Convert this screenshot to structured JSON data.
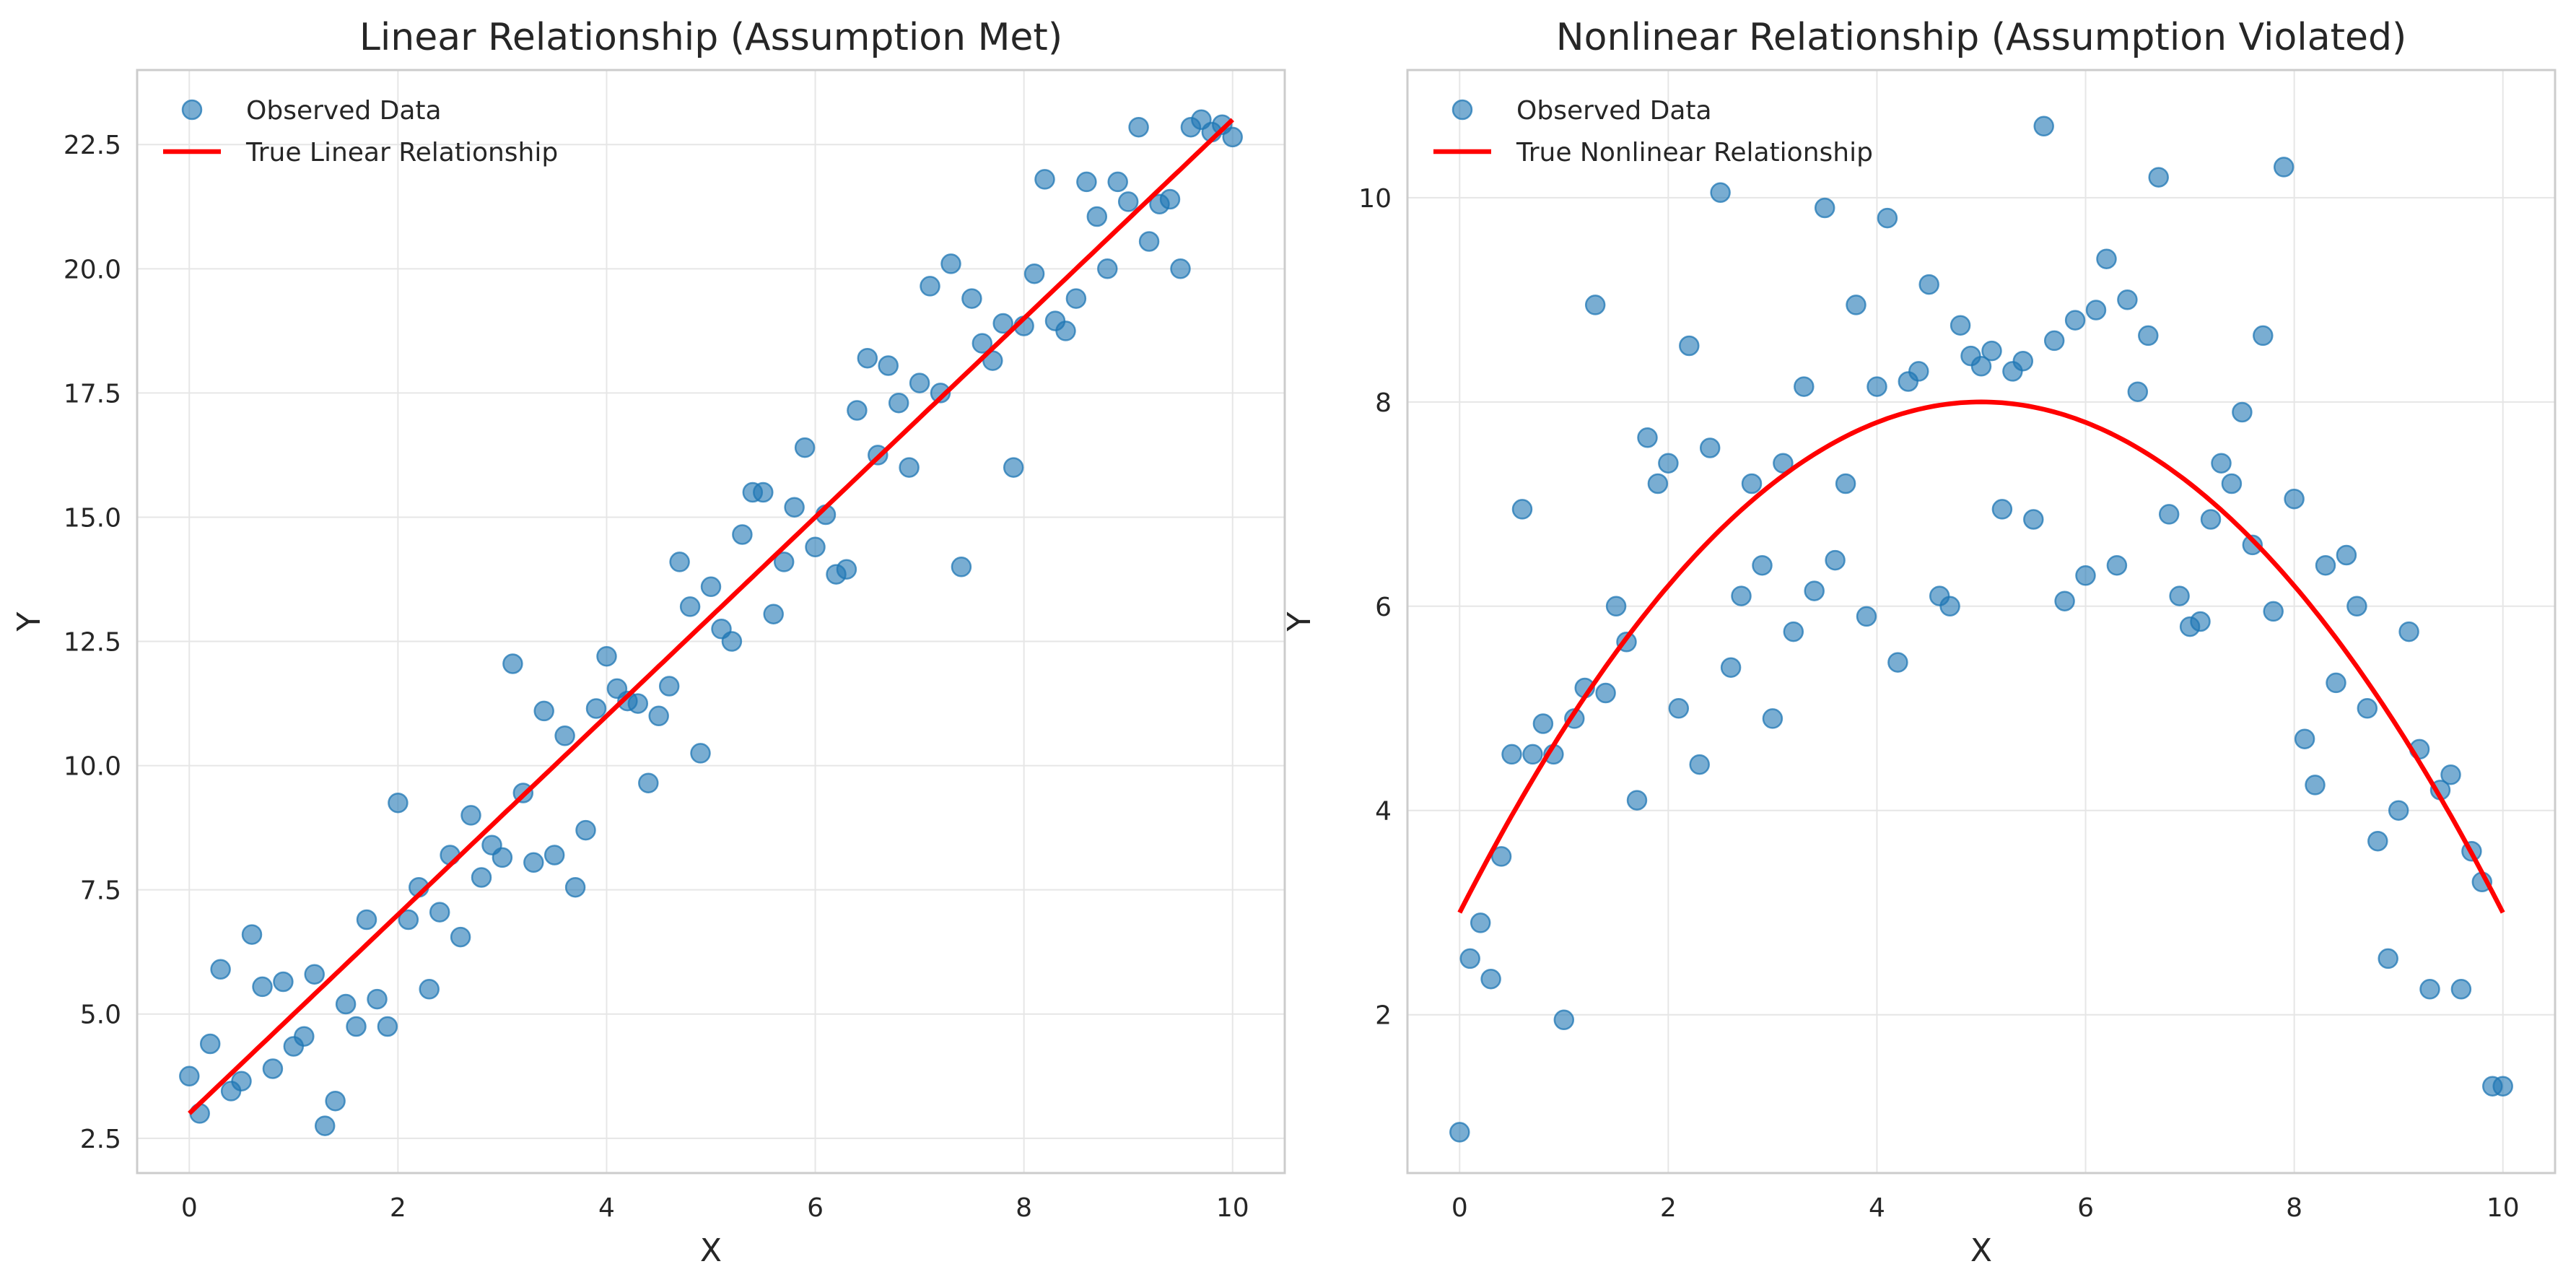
{
  "colors": {
    "points": "#1f77b4",
    "line": "#ff0000",
    "grid": "#e6e6e6",
    "frame": "#cccccc",
    "text": "#262626"
  },
  "chart_data": [
    {
      "type": "scatter",
      "title": "Linear Relationship (Assumption Met)",
      "xlabel": "X",
      "ylabel": "Y",
      "xlim": [
        -0.5,
        10.5
      ],
      "ylim": [
        1.8,
        24.0
      ],
      "xticks": [
        0,
        2,
        4,
        6,
        8,
        10
      ],
      "xtick_labels": [
        "0",
        "2",
        "4",
        "6",
        "8",
        "10"
      ],
      "yticks": [
        2.5,
        5.0,
        7.5,
        10.0,
        12.5,
        15.0,
        17.5,
        20.0,
        22.5
      ],
      "ytick_labels": [
        "2.5",
        "5.0",
        "7.5",
        "10.0",
        "12.5",
        "15.0",
        "17.5",
        "20.0",
        "22.5"
      ],
      "grid": true,
      "legend_position": "top-left",
      "legend": [
        "Observed Data",
        "True Linear Relationship"
      ],
      "series": [
        {
          "kind": "scatter",
          "x": [
            0,
            0.1,
            0.2,
            0.3,
            0.4,
            0.5,
            0.6,
            0.7,
            0.8,
            0.9,
            1,
            1.1,
            1.2,
            1.3,
            1.4,
            1.5,
            1.6,
            1.7,
            1.8,
            1.9,
            2,
            2.1,
            2.2,
            2.3,
            2.4,
            2.5,
            2.6,
            2.7,
            2.8,
            2.9,
            3,
            3.1,
            3.2,
            3.3,
            3.4,
            3.5,
            3.6,
            3.7,
            3.8,
            3.9,
            4,
            4.1,
            4.2,
            4.3,
            4.4,
            4.5,
            4.6,
            4.7,
            4.8,
            4.9,
            5,
            5.1,
            5.2,
            5.3,
            5.4,
            5.5,
            5.6,
            5.7,
            5.8,
            5.9,
            6,
            6.1,
            6.2,
            6.3,
            6.4,
            6.5,
            6.6,
            6.7,
            6.8,
            6.9,
            7,
            7.1,
            7.2,
            7.3,
            7.4,
            7.5,
            7.6,
            7.7,
            7.8,
            7.9,
            8,
            8.1,
            8.2,
            8.3,
            8.4,
            8.5,
            8.6,
            8.7,
            8.8,
            8.9,
            9,
            9.1,
            9.2,
            9.3,
            9.4,
            9.5,
            9.6,
            9.7,
            9.8,
            9.9,
            10
          ],
          "y": [
            3.75,
            3.0,
            4.4,
            5.9,
            3.45,
            3.65,
            6.6,
            5.55,
            3.9,
            5.65,
            4.35,
            4.55,
            5.8,
            2.75,
            3.25,
            5.2,
            4.75,
            6.9,
            5.3,
            4.75,
            9.25,
            6.9,
            7.55,
            5.5,
            7.05,
            8.2,
            6.55,
            9.0,
            7.75,
            8.4,
            8.15,
            12.05,
            9.45,
            8.05,
            11.1,
            8.2,
            10.6,
            7.55,
            8.7,
            11.15,
            12.2,
            11.55,
            11.3,
            11.25,
            9.65,
            11.0,
            11.6,
            14.1,
            13.2,
            10.25,
            13.6,
            12.75,
            12.5,
            14.65,
            15.5,
            15.5,
            13.05,
            14.1,
            15.2,
            16.4,
            14.4,
            15.05,
            13.85,
            13.95,
            17.15,
            18.2,
            16.25,
            18.05,
            17.3,
            16.0,
            17.7,
            19.65,
            17.5,
            20.1,
            14.0,
            19.4,
            18.5,
            18.15,
            18.9,
            16.0,
            18.85,
            19.9,
            21.8,
            18.95,
            18.75,
            19.4,
            21.75,
            21.05,
            20.0,
            21.75,
            21.35,
            22.85,
            20.55,
            21.3,
            21.4,
            20.0,
            22.85,
            23.0,
            22.75,
            22.9,
            22.65
          ]
        },
        {
          "kind": "line",
          "function": "linear",
          "x_range": [
            0,
            10
          ]
        }
      ]
    },
    {
      "type": "scatter",
      "title": "Nonlinear Relationship (Assumption Violated)",
      "xlabel": "X",
      "ylabel": "Y",
      "xlim": [
        -0.5,
        10.5
      ],
      "ylim": [
        0.45,
        11.25
      ],
      "xticks": [
        0,
        2,
        4,
        6,
        8,
        10
      ],
      "xtick_labels": [
        "0",
        "2",
        "4",
        "6",
        "8",
        "10"
      ],
      "yticks": [
        2,
        4,
        6,
        8,
        10
      ],
      "ytick_labels": [
        "2",
        "4",
        "6",
        "8",
        "10"
      ],
      "grid": true,
      "legend_position": "top-left",
      "legend": [
        "Observed Data",
        "True Nonlinear Relationship"
      ],
      "series": [
        {
          "kind": "scatter",
          "x": [
            0,
            0.1,
            0.2,
            0.3,
            0.4,
            0.5,
            0.6,
            0.7,
            0.8,
            0.9,
            1,
            1.1,
            1.2,
            1.3,
            1.4,
            1.5,
            1.6,
            1.7,
            1.8,
            1.9,
            2,
            2.1,
            2.2,
            2.3,
            2.4,
            2.5,
            2.6,
            2.7,
            2.8,
            2.9,
            3,
            3.1,
            3.2,
            3.3,
            3.4,
            3.5,
            3.6,
            3.7,
            3.8,
            3.9,
            4,
            4.1,
            4.2,
            4.3,
            4.4,
            4.5,
            4.6,
            4.7,
            4.8,
            4.9,
            5,
            5.1,
            5.2,
            5.3,
            5.4,
            5.5,
            5.6,
            5.7,
            5.8,
            5.9,
            6,
            6.1,
            6.2,
            6.3,
            6.4,
            6.5,
            6.6,
            6.7,
            6.8,
            6.9,
            7,
            7.1,
            7.2,
            7.3,
            7.4,
            7.5,
            7.6,
            7.7,
            7.8,
            7.9,
            8,
            8.1,
            8.2,
            8.3,
            8.4,
            8.5,
            8.6,
            8.7,
            8.8,
            8.9,
            9,
            9.1,
            9.2,
            9.3,
            9.4,
            9.5,
            9.6,
            9.7,
            9.8,
            9.9,
            10
          ],
          "y": [
            0.85,
            2.55,
            2.9,
            2.35,
            3.55,
            4.55,
            6.95,
            4.55,
            4.85,
            4.55,
            1.95,
            4.9,
            5.2,
            8.95,
            5.15,
            6.0,
            5.65,
            4.1,
            7.65,
            7.2,
            7.4,
            5.0,
            8.55,
            4.45,
            7.55,
            10.05,
            5.4,
            6.1,
            7.2,
            6.4,
            4.9,
            7.4,
            5.75,
            8.15,
            6.15,
            9.9,
            6.45,
            7.2,
            8.95,
            5.9,
            8.15,
            9.8,
            5.45,
            8.2,
            8.3,
            9.15,
            6.1,
            6.0,
            8.75,
            8.45,
            8.35,
            8.5,
            6.95,
            8.3,
            8.4,
            6.85,
            10.7,
            8.6,
            6.05,
            8.8,
            6.3,
            8.9,
            9.4,
            6.4,
            9.0,
            8.1,
            8.65,
            10.2,
            6.9,
            6.1,
            5.8,
            5.85,
            6.85,
            7.4,
            7.2,
            7.9,
            6.6,
            8.65,
            5.95,
            10.3,
            7.05,
            4.7,
            4.25,
            6.4,
            5.25,
            6.5,
            6.0,
            5.0,
            3.7,
            2.55,
            4.0,
            5.75,
            4.6,
            2.25,
            4.2,
            4.35,
            2.25,
            3.6,
            3.3,
            1.3,
            1.3
          ]
        },
        {
          "kind": "line",
          "function": "quadratic",
          "x_range": [
            0,
            10
          ]
        }
      ]
    }
  ]
}
